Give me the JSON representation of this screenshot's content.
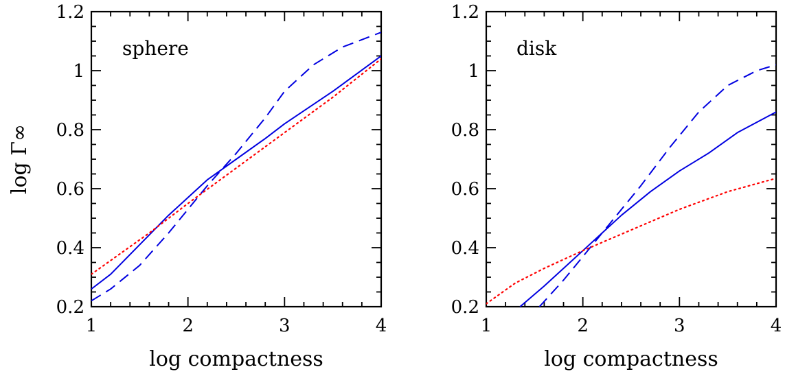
{
  "chart_data": [
    {
      "type": "line",
      "panel_label": "sphere",
      "xlabel": "log compactness",
      "ylabel": "log Γ∞",
      "xlim": [
        1,
        4
      ],
      "ylim": [
        0.2,
        1.2
      ],
      "x_ticks": [
        "1",
        "2",
        "3",
        "4"
      ],
      "y_ticks": [
        "0.2",
        "0.4",
        "0.6",
        "0.8",
        "1",
        "1.2"
      ],
      "x_tick_values": [
        1,
        2,
        3,
        4
      ],
      "y_tick_values": [
        0.2,
        0.4,
        0.6,
        0.8,
        1.0,
        1.2
      ],
      "series": [
        {
          "style": "solid",
          "color": "#0000e0",
          "x": [
            1.0,
            1.2,
            1.5,
            1.8,
            2.0,
            2.2,
            2.5,
            2.8,
            3.0,
            3.5,
            4.0
          ],
          "y": [
            0.26,
            0.31,
            0.41,
            0.51,
            0.57,
            0.63,
            0.7,
            0.77,
            0.82,
            0.93,
            1.05
          ]
        },
        {
          "style": "dashed",
          "color": "#0000e0",
          "x": [
            1.0,
            1.2,
            1.5,
            1.8,
            2.0,
            2.2,
            2.5,
            2.8,
            3.0,
            3.3,
            3.6,
            4.0
          ],
          "y": [
            0.22,
            0.26,
            0.34,
            0.45,
            0.53,
            0.61,
            0.72,
            0.84,
            0.93,
            1.02,
            1.08,
            1.13
          ]
        },
        {
          "style": "dotted",
          "color": "#ff0000",
          "x": [
            1.0,
            1.3,
            1.6,
            2.0,
            2.5,
            3.0,
            3.5,
            4.0
          ],
          "y": [
            0.31,
            0.38,
            0.45,
            0.55,
            0.67,
            0.79,
            0.91,
            1.04
          ]
        }
      ]
    },
    {
      "type": "line",
      "panel_label": "disk",
      "xlabel": "log compactness",
      "ylabel": "",
      "xlim": [
        1,
        4
      ],
      "ylim": [
        0.2,
        1.2
      ],
      "x_ticks": [
        "1",
        "2",
        "3",
        "4"
      ],
      "y_ticks": [
        "0.2",
        "0.4",
        "0.6",
        "0.8",
        "1",
        "1.2"
      ],
      "x_tick_values": [
        1,
        2,
        3,
        4
      ],
      "y_tick_values": [
        0.2,
        0.4,
        0.6,
        0.8,
        1.0,
        1.2
      ],
      "series": [
        {
          "style": "solid",
          "color": "#0000e0",
          "x": [
            1.35,
            1.6,
            2.0,
            2.4,
            2.7,
            3.0,
            3.3,
            3.6,
            4.0
          ],
          "y": [
            0.2,
            0.27,
            0.39,
            0.51,
            0.59,
            0.66,
            0.72,
            0.79,
            0.86
          ]
        },
        {
          "style": "dashed",
          "color": "#0000e0",
          "x": [
            1.55,
            1.8,
            2.0,
            2.3,
            2.6,
            2.9,
            3.2,
            3.5,
            3.8,
            4.0
          ],
          "y": [
            0.2,
            0.29,
            0.37,
            0.49,
            0.61,
            0.74,
            0.86,
            0.95,
            1.0,
            1.02
          ]
        },
        {
          "style": "dotted",
          "color": "#ff0000",
          "x": [
            1.0,
            1.3,
            1.6,
            2.0,
            2.5,
            3.0,
            3.5,
            4.0
          ],
          "y": [
            0.21,
            0.28,
            0.33,
            0.39,
            0.46,
            0.53,
            0.59,
            0.635
          ]
        }
      ]
    }
  ]
}
